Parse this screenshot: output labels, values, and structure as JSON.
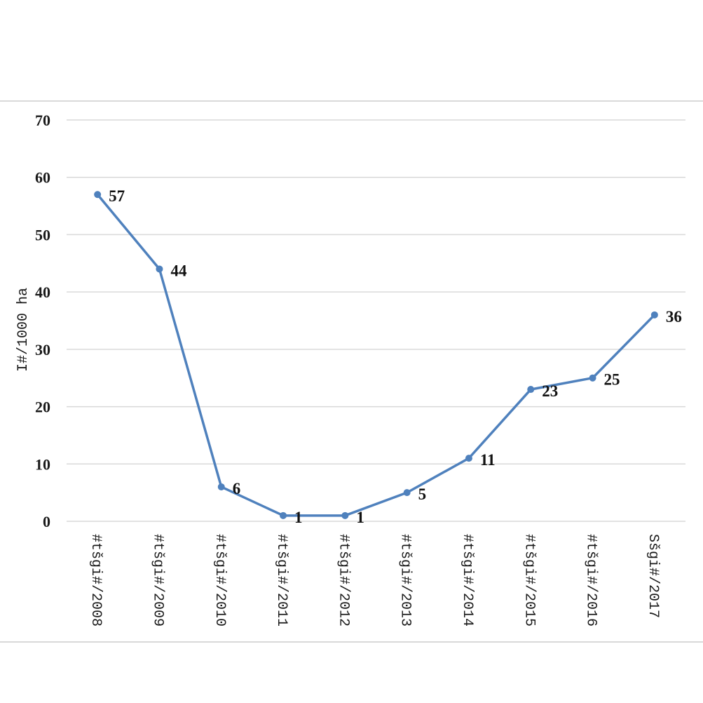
{
  "chart_data": {
    "type": "line",
    "categories": [
      "#tšgi#/2008",
      "#tšgi#/2009",
      "#tšgi#/2010",
      "#tšgi#/2011",
      "#tšgi#/2012",
      "#tšgi#/2013",
      "#tšgi#/2014",
      "#tšgi#/2015",
      "#tšgi#/2016",
      "Sšgi#/2017"
    ],
    "values": [
      57,
      44,
      6,
      1,
      1,
      5,
      11,
      23,
      25,
      36
    ],
    "data_labels": [
      "57",
      "44",
      "6",
      "1",
      "1",
      "5",
      "11",
      "23",
      "25",
      "36"
    ],
    "ylabel": "I#/1000 ha",
    "ylim": [
      0,
      70
    ],
    "yticks": [
      0,
      10,
      20,
      30,
      40,
      50,
      60,
      70
    ],
    "grid": true,
    "legend": "none",
    "line_color": "#4f81bd",
    "grid_color": "#d9d9d9"
  }
}
